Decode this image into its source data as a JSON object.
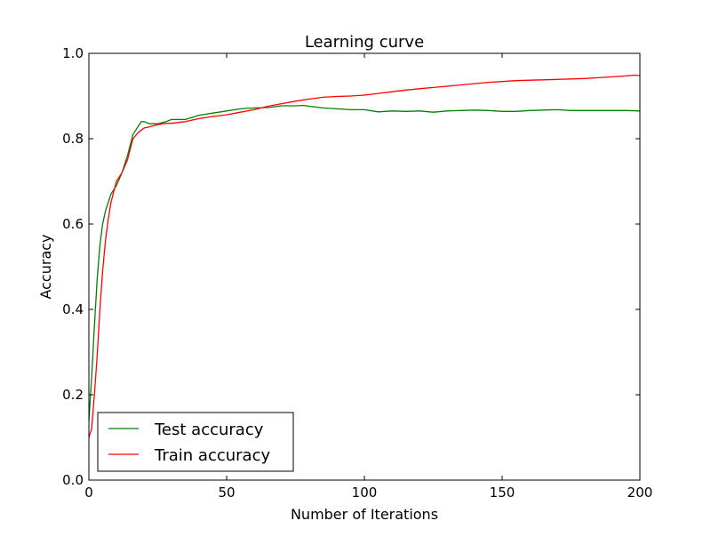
{
  "chart_data": {
    "type": "line",
    "title": "Learning curve",
    "xlabel": "Number of Iterations",
    "ylabel": "Accuracy",
    "xlim": [
      0,
      200
    ],
    "ylim": [
      0.0,
      1.0
    ],
    "xticks": [
      0,
      50,
      100,
      150,
      200
    ],
    "yticks": [
      0.0,
      0.2,
      0.4,
      0.6,
      0.8,
      1.0
    ],
    "xtick_labels": [
      "0",
      "50",
      "100",
      "150",
      "200"
    ],
    "ytick_labels": [
      "0.0",
      "0.2",
      "0.4",
      "0.6",
      "0.8",
      "1.0"
    ],
    "grid": false,
    "legend_position": "lower-left",
    "series": [
      {
        "name": "Test accuracy",
        "color": "#008000",
        "x": [
          0,
          1,
          2,
          3,
          4,
          5,
          6,
          7,
          8,
          10,
          12,
          14,
          16,
          18,
          19,
          20,
          22,
          25,
          28,
          30,
          35,
          40,
          45,
          50,
          55,
          60,
          65,
          70,
          75,
          78,
          80,
          85,
          90,
          95,
          100,
          105,
          110,
          115,
          120,
          125,
          130,
          135,
          140,
          145,
          150,
          155,
          160,
          165,
          170,
          175,
          180,
          185,
          190,
          195,
          200
        ],
        "y": [
          0.14,
          0.24,
          0.36,
          0.47,
          0.55,
          0.6,
          0.63,
          0.65,
          0.67,
          0.69,
          0.72,
          0.76,
          0.81,
          0.83,
          0.84,
          0.84,
          0.835,
          0.835,
          0.84,
          0.845,
          0.845,
          0.855,
          0.86,
          0.865,
          0.87,
          0.872,
          0.873,
          0.877,
          0.877,
          0.878,
          0.876,
          0.872,
          0.87,
          0.868,
          0.868,
          0.863,
          0.865,
          0.864,
          0.865,
          0.862,
          0.865,
          0.866,
          0.867,
          0.866,
          0.864,
          0.864,
          0.866,
          0.867,
          0.868,
          0.866,
          0.866,
          0.866,
          0.866,
          0.866,
          0.865
        ]
      },
      {
        "name": "Train accuracy",
        "color": "#ff0000",
        "x": [
          0,
          1,
          2,
          3,
          4,
          5,
          6,
          7,
          8,
          10,
          12,
          14,
          16,
          18,
          20,
          22,
          25,
          28,
          30,
          35,
          40,
          45,
          50,
          55,
          60,
          65,
          70,
          75,
          80,
          85,
          90,
          95,
          100,
          105,
          110,
          115,
          120,
          125,
          130,
          135,
          140,
          145,
          150,
          155,
          160,
          165,
          170,
          175,
          180,
          185,
          190,
          195,
          198,
          200
        ],
        "y": [
          0.1,
          0.12,
          0.2,
          0.29,
          0.4,
          0.49,
          0.56,
          0.61,
          0.65,
          0.7,
          0.72,
          0.75,
          0.8,
          0.815,
          0.825,
          0.828,
          0.833,
          0.836,
          0.836,
          0.84,
          0.847,
          0.852,
          0.856,
          0.862,
          0.868,
          0.876,
          0.882,
          0.888,
          0.893,
          0.897,
          0.899,
          0.9,
          0.902,
          0.906,
          0.91,
          0.914,
          0.917,
          0.92,
          0.923,
          0.926,
          0.929,
          0.932,
          0.934,
          0.936,
          0.937,
          0.938,
          0.939,
          0.94,
          0.941,
          0.943,
          0.945,
          0.947,
          0.949,
          0.948
        ]
      }
    ]
  }
}
